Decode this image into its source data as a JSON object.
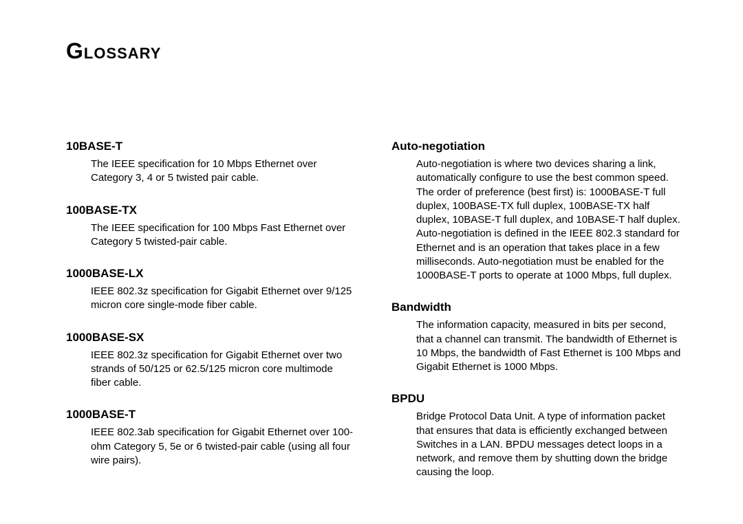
{
  "title": "Glossary",
  "left": [
    {
      "term": "10BASE-T",
      "def": "The IEEE specification for 10 Mbps Ethernet over Category 3, 4 or 5 twisted pair cable."
    },
    {
      "term": "100BASE-TX",
      "def": "The IEEE specification for 100 Mbps Fast Ethernet over Category 5 twisted-pair cable."
    },
    {
      "term": "1000BASE-LX",
      "def": "IEEE 802.3z specification for Gigabit Ethernet over 9/125 micron core single-mode fiber cable."
    },
    {
      "term": "1000BASE-SX",
      "def": "IEEE 802.3z specification for Gigabit Ethernet over two strands of 50/125 or 62.5/125 micron core multimode fiber cable."
    },
    {
      "term": "1000BASE-T",
      "def": "IEEE 802.3ab specification for Gigabit Ethernet over 100-ohm Category 5, 5e or 6 twisted-pair cable (using all four wire pairs)."
    }
  ],
  "right": [
    {
      "term": "Auto-negotiation",
      "def": "Auto-negotiation is where two devices sharing a link, automatically configure to use the best common speed. The order of preference (best first) is: 1000BASE-T full duplex, 100BASE-TX full duplex, 100BASE-TX half duplex, 10BASE-T full duplex, and 10BASE-T half duplex. Auto-negotiation is defined in the IEEE 802.3 standard for Ethernet and is an operation that takes place in a few milliseconds. Auto-negotiation must be enabled for the 1000BASE-T ports to operate at 1000 Mbps, full duplex."
    },
    {
      "term": "Bandwidth",
      "def": "The information capacity, measured in bits per second, that a channel can transmit. The bandwidth of Ethernet is 10 Mbps, the bandwidth of Fast Ethernet is 100 Mbps and Gigabit Ethernet is 1000 Mbps."
    },
    {
      "term": "BPDU",
      "def": "Bridge Protocol Data Unit. A type of information packet that ensures that data is efficiently exchanged between Switches in a LAN. BPDU messages detect loops in a network, and remove them by shutting down the bridge causing the loop."
    }
  ]
}
